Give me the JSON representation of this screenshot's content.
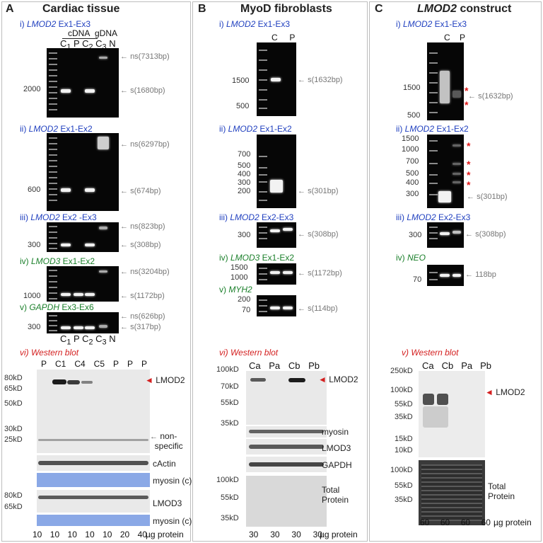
{
  "panelA": {
    "letter": "A",
    "title": "Cardiac tissue",
    "gel_i": {
      "label_gene": "LMOD2",
      "label_rest": " Ex1-Ex3",
      "cdna": "cDNA",
      "gdna": "gDNA",
      "lanes": [
        "C",
        "1",
        "P",
        "C",
        "2",
        "C",
        "3",
        "N"
      ],
      "marker": "2000",
      "ns": "ns(7313bp)",
      "s": "s(1680bp)"
    },
    "gel_ii": {
      "label_gene": "LMOD2",
      "label_rest": " Ex1-Ex2",
      "marker": "600",
      "ns": "ns(6297bp)",
      "s": "s(674bp)"
    },
    "gel_iii": {
      "label_gene": "LMOD2",
      "label_rest": " Ex2 -Ex3",
      "marker": "300",
      "ns": "ns(823bp)",
      "s": "s(308bp)"
    },
    "gel_iv": {
      "label_gene": "LMOD3",
      "label_rest": " Ex1-Ex2",
      "marker": "1000",
      "ns": "ns(3204bp)",
      "s": "s(1172bp)"
    },
    "gel_v": {
      "label_gene": "GAPDH",
      "label_rest": " Ex3-Ex6",
      "marker": "300",
      "ns": "ns(626bp)",
      "s": "s(317bp)",
      "lanes": [
        "C",
        "1",
        "P",
        "C",
        "2",
        "C",
        "3",
        "N"
      ]
    },
    "wb": {
      "label": "vi) Western blot",
      "lanes": [
        "P",
        "C1",
        "C4",
        "C5",
        "P",
        "P",
        "P"
      ],
      "markers": [
        "80kD",
        "65kD",
        "50kD",
        "30kD",
        "25kD",
        "80kD",
        "65kD"
      ],
      "lmod2": "LMOD2",
      "nonspec_1": "non-",
      "nonspec_2": "specific",
      "cactin": "cActin",
      "myosin": "myosin (c)",
      "lmod3": "LMOD3",
      "myosin2": "myosin (c)",
      "amounts": [
        "10",
        "10",
        "10",
        "10",
        "10",
        "20",
        "40"
      ],
      "unit": "µg protein"
    }
  },
  "panelB": {
    "letter": "B",
    "title": "MyoD fibroblasts",
    "gel_i": {
      "label_gene": "LMOD2",
      "label_rest": " Ex1-Ex3",
      "lanes": [
        "C",
        "P"
      ],
      "markers": [
        "1500",
        "500"
      ],
      "s": "s(1632bp)"
    },
    "gel_ii": {
      "label_gene": "LMOD2",
      "label_rest": " Ex1-Ex2",
      "markers": [
        "700",
        "500",
        "400",
        "300",
        "200"
      ],
      "s": "s(301bp)"
    },
    "gel_iii": {
      "label_gene": "LMOD2",
      "label_rest": " Ex2-Ex3",
      "marker": "300",
      "s": "s(308bp)"
    },
    "gel_iv": {
      "label_gene": "LMOD3",
      "label_rest": " Ex1-Ex2",
      "markers": [
        "1500",
        "1000"
      ],
      "s": "s(1172bp)"
    },
    "gel_v": {
      "label_gene": "MYH2",
      "markers": [
        "200",
        "70"
      ],
      "s": "s(114bp)"
    },
    "wb": {
      "label": "vi) Western blot",
      "lanes": [
        "Ca",
        "Pa",
        "Cb",
        "Pb"
      ],
      "markers": [
        "100kD",
        "70kD",
        "55kD",
        "35kD",
        "100kD",
        "55kD",
        "35kD"
      ],
      "lmod2": "LMOD2",
      "myosin": "myosin",
      "lmod3": "LMOD3",
      "gapdh": "GAPDH",
      "total1": "Total",
      "total2": "Protein",
      "amounts": [
        "30",
        "30",
        "30",
        "30"
      ],
      "unit": "µg protein"
    }
  },
  "panelC": {
    "letter": "C",
    "title_gene": "LMOD2",
    "title_rest": " construct",
    "gel_i": {
      "label_gene": "LMOD2",
      "label_rest": " Ex1-Ex3",
      "lanes": [
        "C",
        "P"
      ],
      "markers": [
        "1500",
        "500"
      ],
      "s": "s(1632bp)"
    },
    "gel_ii": {
      "label_gene": "LMOD2",
      "label_rest": " Ex1-Ex2",
      "markers": [
        "1500",
        "1000",
        "700",
        "500",
        "400",
        "300"
      ],
      "s": "s(301bp)"
    },
    "gel_iii": {
      "label_gene": "LMOD2",
      "label_rest": " Ex2-Ex3",
      "marker": "300",
      "s": "s(308bp)"
    },
    "gel_iv": {
      "label_gene": "NEO",
      "marker": "70",
      "s": "118bp"
    },
    "wb": {
      "label": "v) Western blot",
      "lanes": [
        "Ca",
        "Cb",
        "Pa",
        "Pb"
      ],
      "markers": [
        "250kD",
        "100kD",
        "55kD",
        "35kD",
        "15kD",
        "10kD",
        "100kD",
        "55kD",
        "35kD"
      ],
      "lmod2": "LMOD2",
      "total1": "Total",
      "total2": "Protein",
      "amounts": [
        "60",
        "60",
        "60",
        "60"
      ],
      "unit": "µg protein"
    }
  },
  "labels": {
    "i": "i) ",
    "ii": "ii) ",
    "iii": "iii) ",
    "iv": "iv) ",
    "v": "v) ",
    "star": "*"
  },
  "colors": {
    "blue_label": "#1f3fbf",
    "green_label": "#1a7f2a",
    "red_label": "#d42020"
  }
}
